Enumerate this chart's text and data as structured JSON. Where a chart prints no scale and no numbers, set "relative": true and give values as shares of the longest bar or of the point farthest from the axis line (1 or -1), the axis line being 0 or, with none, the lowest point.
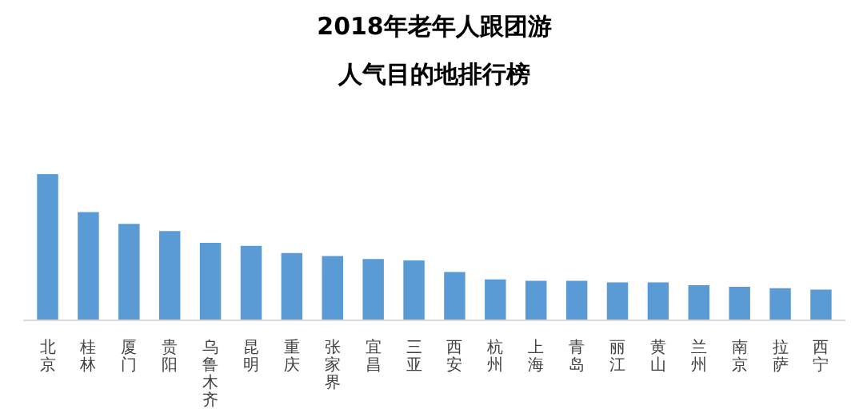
{
  "chart_data": {
    "type": "bar",
    "title": "2018年老年人跟团游",
    "subtitle": "人气目的地排行榜",
    "relative": true,
    "categories": [
      "北京",
      "桂林",
      "厦门",
      "贵阳",
      "乌鲁木齐",
      "昆明",
      "重庆",
      "张家界",
      "宜昌",
      "三亚",
      "西安",
      "杭州",
      "上海",
      "青岛",
      "丽江",
      "黄山",
      "兰州",
      "南京",
      "拉萨",
      "西宁"
    ],
    "values": [
      1,
      0.74,
      0.66,
      0.61,
      0.53,
      0.51,
      0.46,
      0.44,
      0.42,
      0.41,
      0.33,
      0.28,
      0.27,
      0.27,
      0.26,
      0.26,
      0.24,
      0.23,
      0.22,
      0.21
    ],
    "color": "#5b9bd5",
    "grid": false
  }
}
